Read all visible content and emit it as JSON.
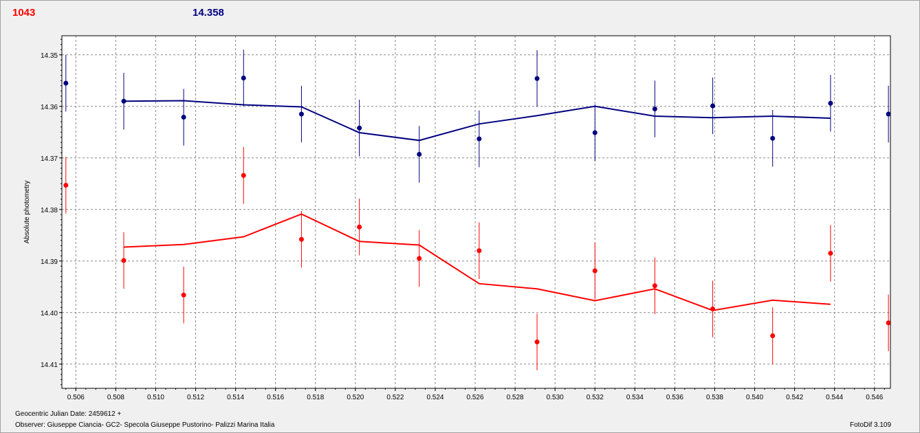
{
  "header": {
    "left_value": "1043",
    "right_value": "14.358"
  },
  "footer": {
    "julian_date": "Geocentric Julian Date: 2459612 +",
    "observer": "Observer: Giuseppe Ciancia- GC2- Specola Giuseppe Pustorino- Palizzi Marina Italia",
    "software": "FotoDif 3.109"
  },
  "colors": {
    "blue_series": "#000080",
    "red_series": "#ff0000",
    "plot_background": "#ffffff",
    "grid": "#888888"
  },
  "chart_data": {
    "type": "scatter",
    "ylabel": "Absolute photometry",
    "xlabel": "",
    "xlim": [
      0.5053,
      0.5468
    ],
    "ylim": [
      14.3463,
      14.4147
    ],
    "y_inverted": true,
    "grid": true,
    "x_ticks": [
      "0.506",
      "0.508",
      "0.510",
      "0.512",
      "0.514",
      "0.516",
      "0.518",
      "0.520",
      "0.522",
      "0.524",
      "0.526",
      "0.528",
      "0.530",
      "0.532",
      "0.534",
      "0.536",
      "0.538",
      "0.540",
      "0.542",
      "0.544",
      "0.546"
    ],
    "y_ticks": [
      "14.35",
      "14.36",
      "14.37",
      "14.38",
      "14.39",
      "14.40",
      "14.41"
    ],
    "series": [
      {
        "color": "#000080",
        "points": [
          {
            "x": 0.5055,
            "y": 14.3555,
            "err": 0.0055
          },
          {
            "x": 0.5084,
            "y": 14.359,
            "err": 0.0055
          },
          {
            "x": 0.5114,
            "y": 14.3621,
            "err": 0.0055
          },
          {
            "x": 0.5144,
            "y": 14.3545,
            "err": 0.0055
          },
          {
            "x": 0.5173,
            "y": 14.3615,
            "err": 0.0055
          },
          {
            "x": 0.5202,
            "y": 14.3642,
            "err": 0.0055
          },
          {
            "x": 0.5232,
            "y": 14.3693,
            "err": 0.0055
          },
          {
            "x": 0.5262,
            "y": 14.3663,
            "err": 0.0055
          },
          {
            "x": 0.5291,
            "y": 14.3546,
            "err": 0.0055
          },
          {
            "x": 0.532,
            "y": 14.3651,
            "err": 0.0055
          },
          {
            "x": 0.535,
            "y": 14.3605,
            "err": 0.0055
          },
          {
            "x": 0.5379,
            "y": 14.3599,
            "err": 0.0055
          },
          {
            "x": 0.5409,
            "y": 14.3662,
            "err": 0.0055
          },
          {
            "x": 0.5438,
            "y": 14.3594,
            "err": 0.0055
          },
          {
            "x": 0.5467,
            "y": 14.3615,
            "err": 0.0055
          }
        ],
        "trend": [
          {
            "x": 0.5084,
            "y": 14.359
          },
          {
            "x": 0.5114,
            "y": 14.3589
          },
          {
            "x": 0.5144,
            "y": 14.3597
          },
          {
            "x": 0.5173,
            "y": 14.3601
          },
          {
            "x": 0.5202,
            "y": 14.3651
          },
          {
            "x": 0.5232,
            "y": 14.3666
          },
          {
            "x": 0.5262,
            "y": 14.3634
          },
          {
            "x": 0.5291,
            "y": 14.3618
          },
          {
            "x": 0.532,
            "y": 14.36
          },
          {
            "x": 0.535,
            "y": 14.3619
          },
          {
            "x": 0.5379,
            "y": 14.3622
          },
          {
            "x": 0.5409,
            "y": 14.3619
          },
          {
            "x": 0.5438,
            "y": 14.3623
          }
        ]
      },
      {
        "color": "#ff0000",
        "points": [
          {
            "x": 0.5055,
            "y": 14.3753,
            "err": 0.0055
          },
          {
            "x": 0.5084,
            "y": 14.3899,
            "err": 0.0055
          },
          {
            "x": 0.5114,
            "y": 14.3966,
            "err": 0.0055
          },
          {
            "x": 0.5144,
            "y": 14.3734,
            "err": 0.0055
          },
          {
            "x": 0.5173,
            "y": 14.3858,
            "err": 0.0055
          },
          {
            "x": 0.5202,
            "y": 14.3834,
            "err": 0.0055
          },
          {
            "x": 0.5232,
            "y": 14.3895,
            "err": 0.0055
          },
          {
            "x": 0.5262,
            "y": 14.388,
            "err": 0.0055
          },
          {
            "x": 0.5291,
            "y": 14.4057,
            "err": 0.0055
          },
          {
            "x": 0.532,
            "y": 14.3919,
            "err": 0.0055
          },
          {
            "x": 0.535,
            "y": 14.3948,
            "err": 0.0055
          },
          {
            "x": 0.5379,
            "y": 14.3993,
            "err": 0.0055
          },
          {
            "x": 0.5409,
            "y": 14.4045,
            "err": 0.0055
          },
          {
            "x": 0.5438,
            "y": 14.3885,
            "err": 0.0055
          },
          {
            "x": 0.5467,
            "y": 14.402,
            "err": 0.0055
          }
        ],
        "trend": [
          {
            "x": 0.5084,
            "y": 14.3873
          },
          {
            "x": 0.5114,
            "y": 14.3868
          },
          {
            "x": 0.5144,
            "y": 14.3853
          },
          {
            "x": 0.5173,
            "y": 14.3809
          },
          {
            "x": 0.5202,
            "y": 14.3862
          },
          {
            "x": 0.5232,
            "y": 14.3869
          },
          {
            "x": 0.5262,
            "y": 14.3944
          },
          {
            "x": 0.5291,
            "y": 14.3954
          },
          {
            "x": 0.532,
            "y": 14.3977
          },
          {
            "x": 0.535,
            "y": 14.3954
          },
          {
            "x": 0.5379,
            "y": 14.3996
          },
          {
            "x": 0.5409,
            "y": 14.3976
          },
          {
            "x": 0.5438,
            "y": 14.3984
          }
        ]
      }
    ]
  }
}
